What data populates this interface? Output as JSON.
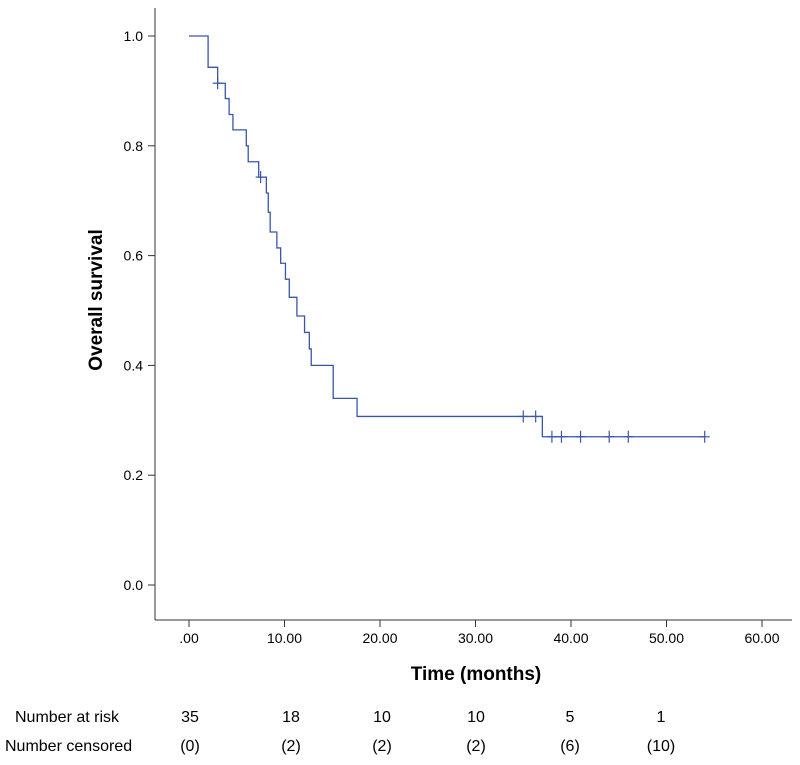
{
  "chart_data": {
    "type": "line",
    "subtype": "kaplan-meier",
    "title": "",
    "xlabel": "Time (months)",
    "ylabel": "Overall survival",
    "xlim": [
      -3,
      64
    ],
    "ylim": [
      -0.05,
      1.05
    ],
    "x_ticks": [
      0,
      10,
      20,
      30,
      40,
      50,
      60
    ],
    "x_tick_labels": [
      ".00",
      "10.00",
      "20.00",
      "30.00",
      "40.00",
      "50.00",
      "60.00"
    ],
    "y_ticks": [
      0,
      0.2,
      0.4,
      0.6,
      0.8,
      1.0
    ],
    "y_tick_labels": [
      "0.0",
      "0.2",
      "0.4",
      "0.6",
      "0.8",
      "1.0"
    ],
    "grid": false,
    "line_color": "#3a56a8",
    "series": [
      {
        "name": "Overall survival",
        "steps": [
          {
            "t": 0,
            "s": 1.0
          },
          {
            "t": 2.0,
            "s": 0.943
          },
          {
            "t": 3.0,
            "s": 0.914
          },
          {
            "t": 3.8,
            "s": 0.886
          },
          {
            "t": 4.2,
            "s": 0.857
          },
          {
            "t": 4.6,
            "s": 0.829
          },
          {
            "t": 6.0,
            "s": 0.8
          },
          {
            "t": 6.2,
            "s": 0.771
          },
          {
            "t": 7.3,
            "s": 0.743
          },
          {
            "t": 8.1,
            "s": 0.714
          },
          {
            "t": 8.3,
            "s": 0.679
          },
          {
            "t": 8.5,
            "s": 0.643
          },
          {
            "t": 9.2,
            "s": 0.614
          },
          {
            "t": 9.6,
            "s": 0.586
          },
          {
            "t": 10.1,
            "s": 0.557
          },
          {
            "t": 10.5,
            "s": 0.524
          },
          {
            "t": 11.3,
            "s": 0.49
          },
          {
            "t": 12.1,
            "s": 0.46
          },
          {
            "t": 12.6,
            "s": 0.43
          },
          {
            "t": 12.8,
            "s": 0.4
          },
          {
            "t": 15.1,
            "s": 0.34
          },
          {
            "t": 17.6,
            "s": 0.307
          },
          {
            "t": 37.0,
            "s": 0.27
          }
        ],
        "end_time": 54.0,
        "censored": [
          {
            "t": 3.0,
            "s": 0.914
          },
          {
            "t": 7.5,
            "s": 0.743
          },
          {
            "t": 35.0,
            "s": 0.307
          },
          {
            "t": 36.3,
            "s": 0.307
          },
          {
            "t": 38.0,
            "s": 0.27
          },
          {
            "t": 39.0,
            "s": 0.27
          },
          {
            "t": 41.0,
            "s": 0.27
          },
          {
            "t": 44.0,
            "s": 0.27
          },
          {
            "t": 46.0,
            "s": 0.27
          },
          {
            "t": 54.0,
            "s": 0.27
          }
        ]
      }
    ],
    "risk_table": {
      "at_risk_label": "Number at risk",
      "censored_label": "Number censored",
      "at_risk": [
        "35",
        "18",
        "10",
        "10",
        "5",
        "1"
      ],
      "censored": [
        "(0)",
        "(2)",
        "(2)",
        "(2)",
        "(6)",
        "(10)"
      ]
    }
  }
}
